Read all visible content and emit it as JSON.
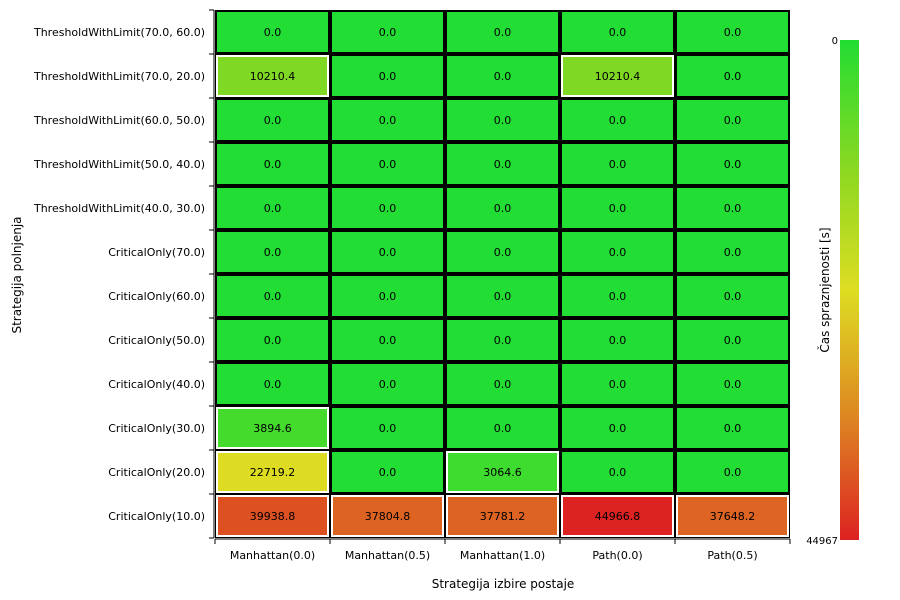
{
  "chart_data": {
    "type": "heatmap",
    "title": "",
    "xlabel": "Strategija izbire postaje",
    "ylabel": "Strategija polnjenja",
    "x_categories": [
      "Manhattan(0.0)",
      "Manhattan(0.5)",
      "Manhattan(1.0)",
      "Path(0.0)",
      "Path(0.5)"
    ],
    "y_categories": [
      "ThresholdWithLimit(70.0, 60.0)",
      "ThresholdWithLimit(70.0, 20.0)",
      "ThresholdWithLimit(60.0, 50.0)",
      "ThresholdWithLimit(50.0, 40.0)",
      "ThresholdWithLimit(40.0, 30.0)",
      "CriticalOnly(70.0)",
      "CriticalOnly(60.0)",
      "CriticalOnly(50.0)",
      "CriticalOnly(40.0)",
      "CriticalOnly(30.0)",
      "CriticalOnly(20.0)",
      "CriticalOnly(10.0)"
    ],
    "values": [
      [
        0.0,
        0.0,
        0.0,
        0.0,
        0.0
      ],
      [
        10210.4,
        0.0,
        0.0,
        10210.4,
        0.0
      ],
      [
        0.0,
        0.0,
        0.0,
        0.0,
        0.0
      ],
      [
        0.0,
        0.0,
        0.0,
        0.0,
        0.0
      ],
      [
        0.0,
        0.0,
        0.0,
        0.0,
        0.0
      ],
      [
        0.0,
        0.0,
        0.0,
        0.0,
        0.0
      ],
      [
        0.0,
        0.0,
        0.0,
        0.0,
        0.0
      ],
      [
        0.0,
        0.0,
        0.0,
        0.0,
        0.0
      ],
      [
        0.0,
        0.0,
        0.0,
        0.0,
        0.0
      ],
      [
        3894.6,
        0.0,
        0.0,
        0.0,
        0.0
      ],
      [
        22719.2,
        0.0,
        3064.6,
        0.0,
        0.0
      ],
      [
        39938.8,
        37804.8,
        37781.2,
        44966.8,
        37648.2
      ]
    ],
    "highlighted_cells": [
      [
        1,
        0
      ],
      [
        1,
        3
      ],
      [
        9,
        0
      ],
      [
        10,
        0
      ],
      [
        10,
        2
      ],
      [
        11,
        0
      ],
      [
        11,
        1
      ],
      [
        11,
        2
      ],
      [
        11,
        3
      ],
      [
        11,
        4
      ]
    ],
    "colorbar": {
      "label": "Čas spraznjenosti [s]",
      "min": 0,
      "max": 44967,
      "min_label": "0",
      "max_label": "44967",
      "colors": [
        "#22dd33",
        "#88d822",
        "#dddd22",
        "#dd8822",
        "#dd2222"
      ]
    },
    "grid": false,
    "legend": "colorbar-right"
  }
}
